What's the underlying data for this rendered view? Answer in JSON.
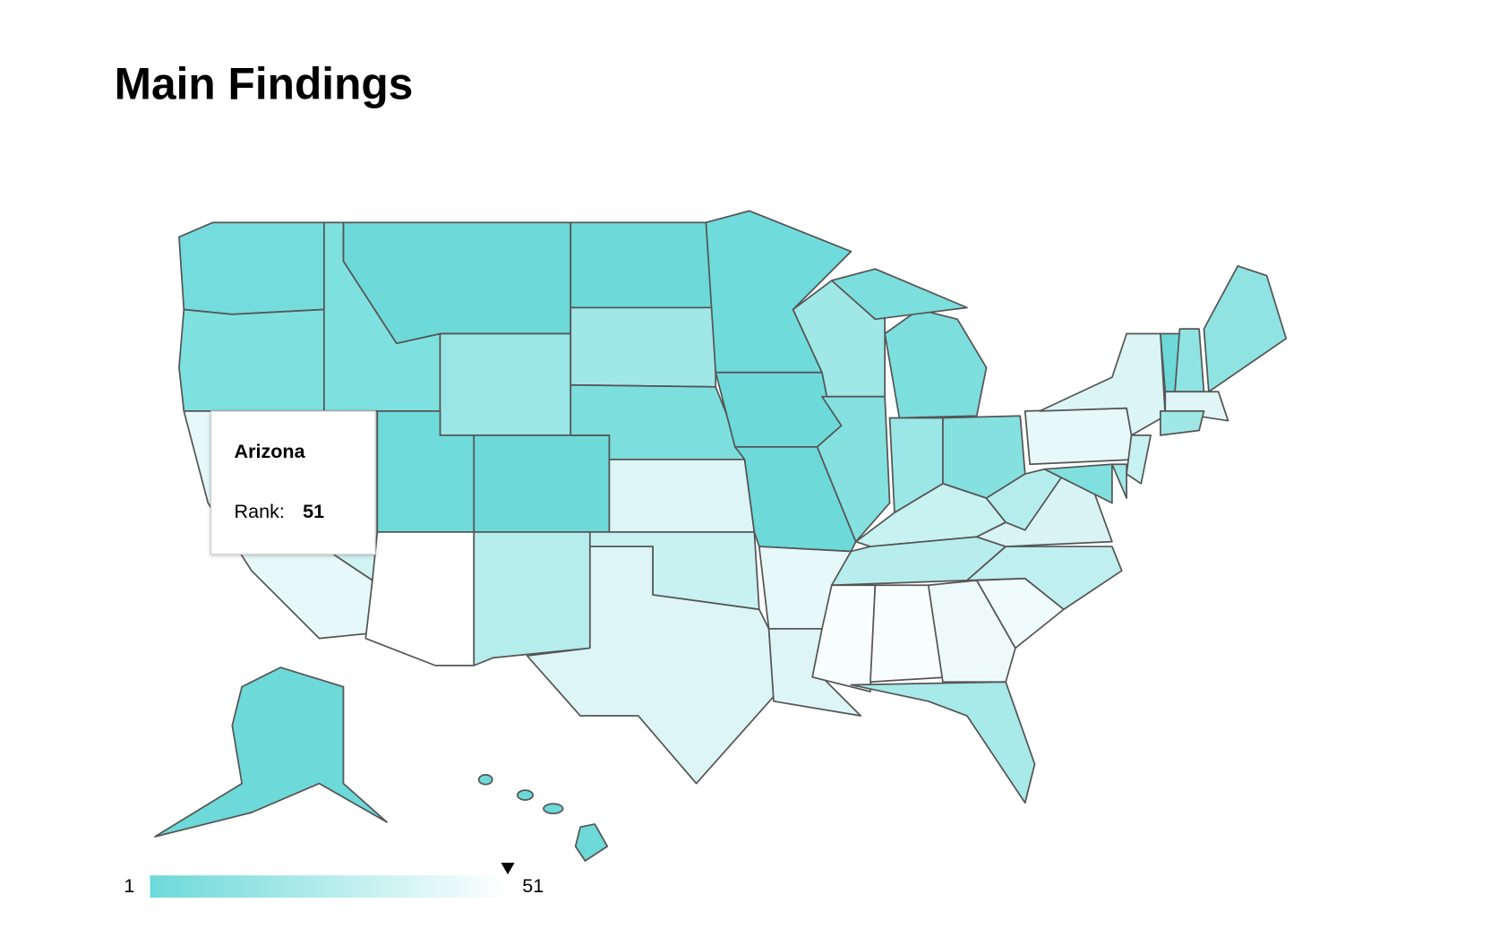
{
  "header": {
    "title": "Main Findings"
  },
  "tooltip": {
    "state": "Arizona",
    "rank_label": "Rank:",
    "rank": 51
  },
  "legend": {
    "min": 1,
    "max": 51
  }
}
